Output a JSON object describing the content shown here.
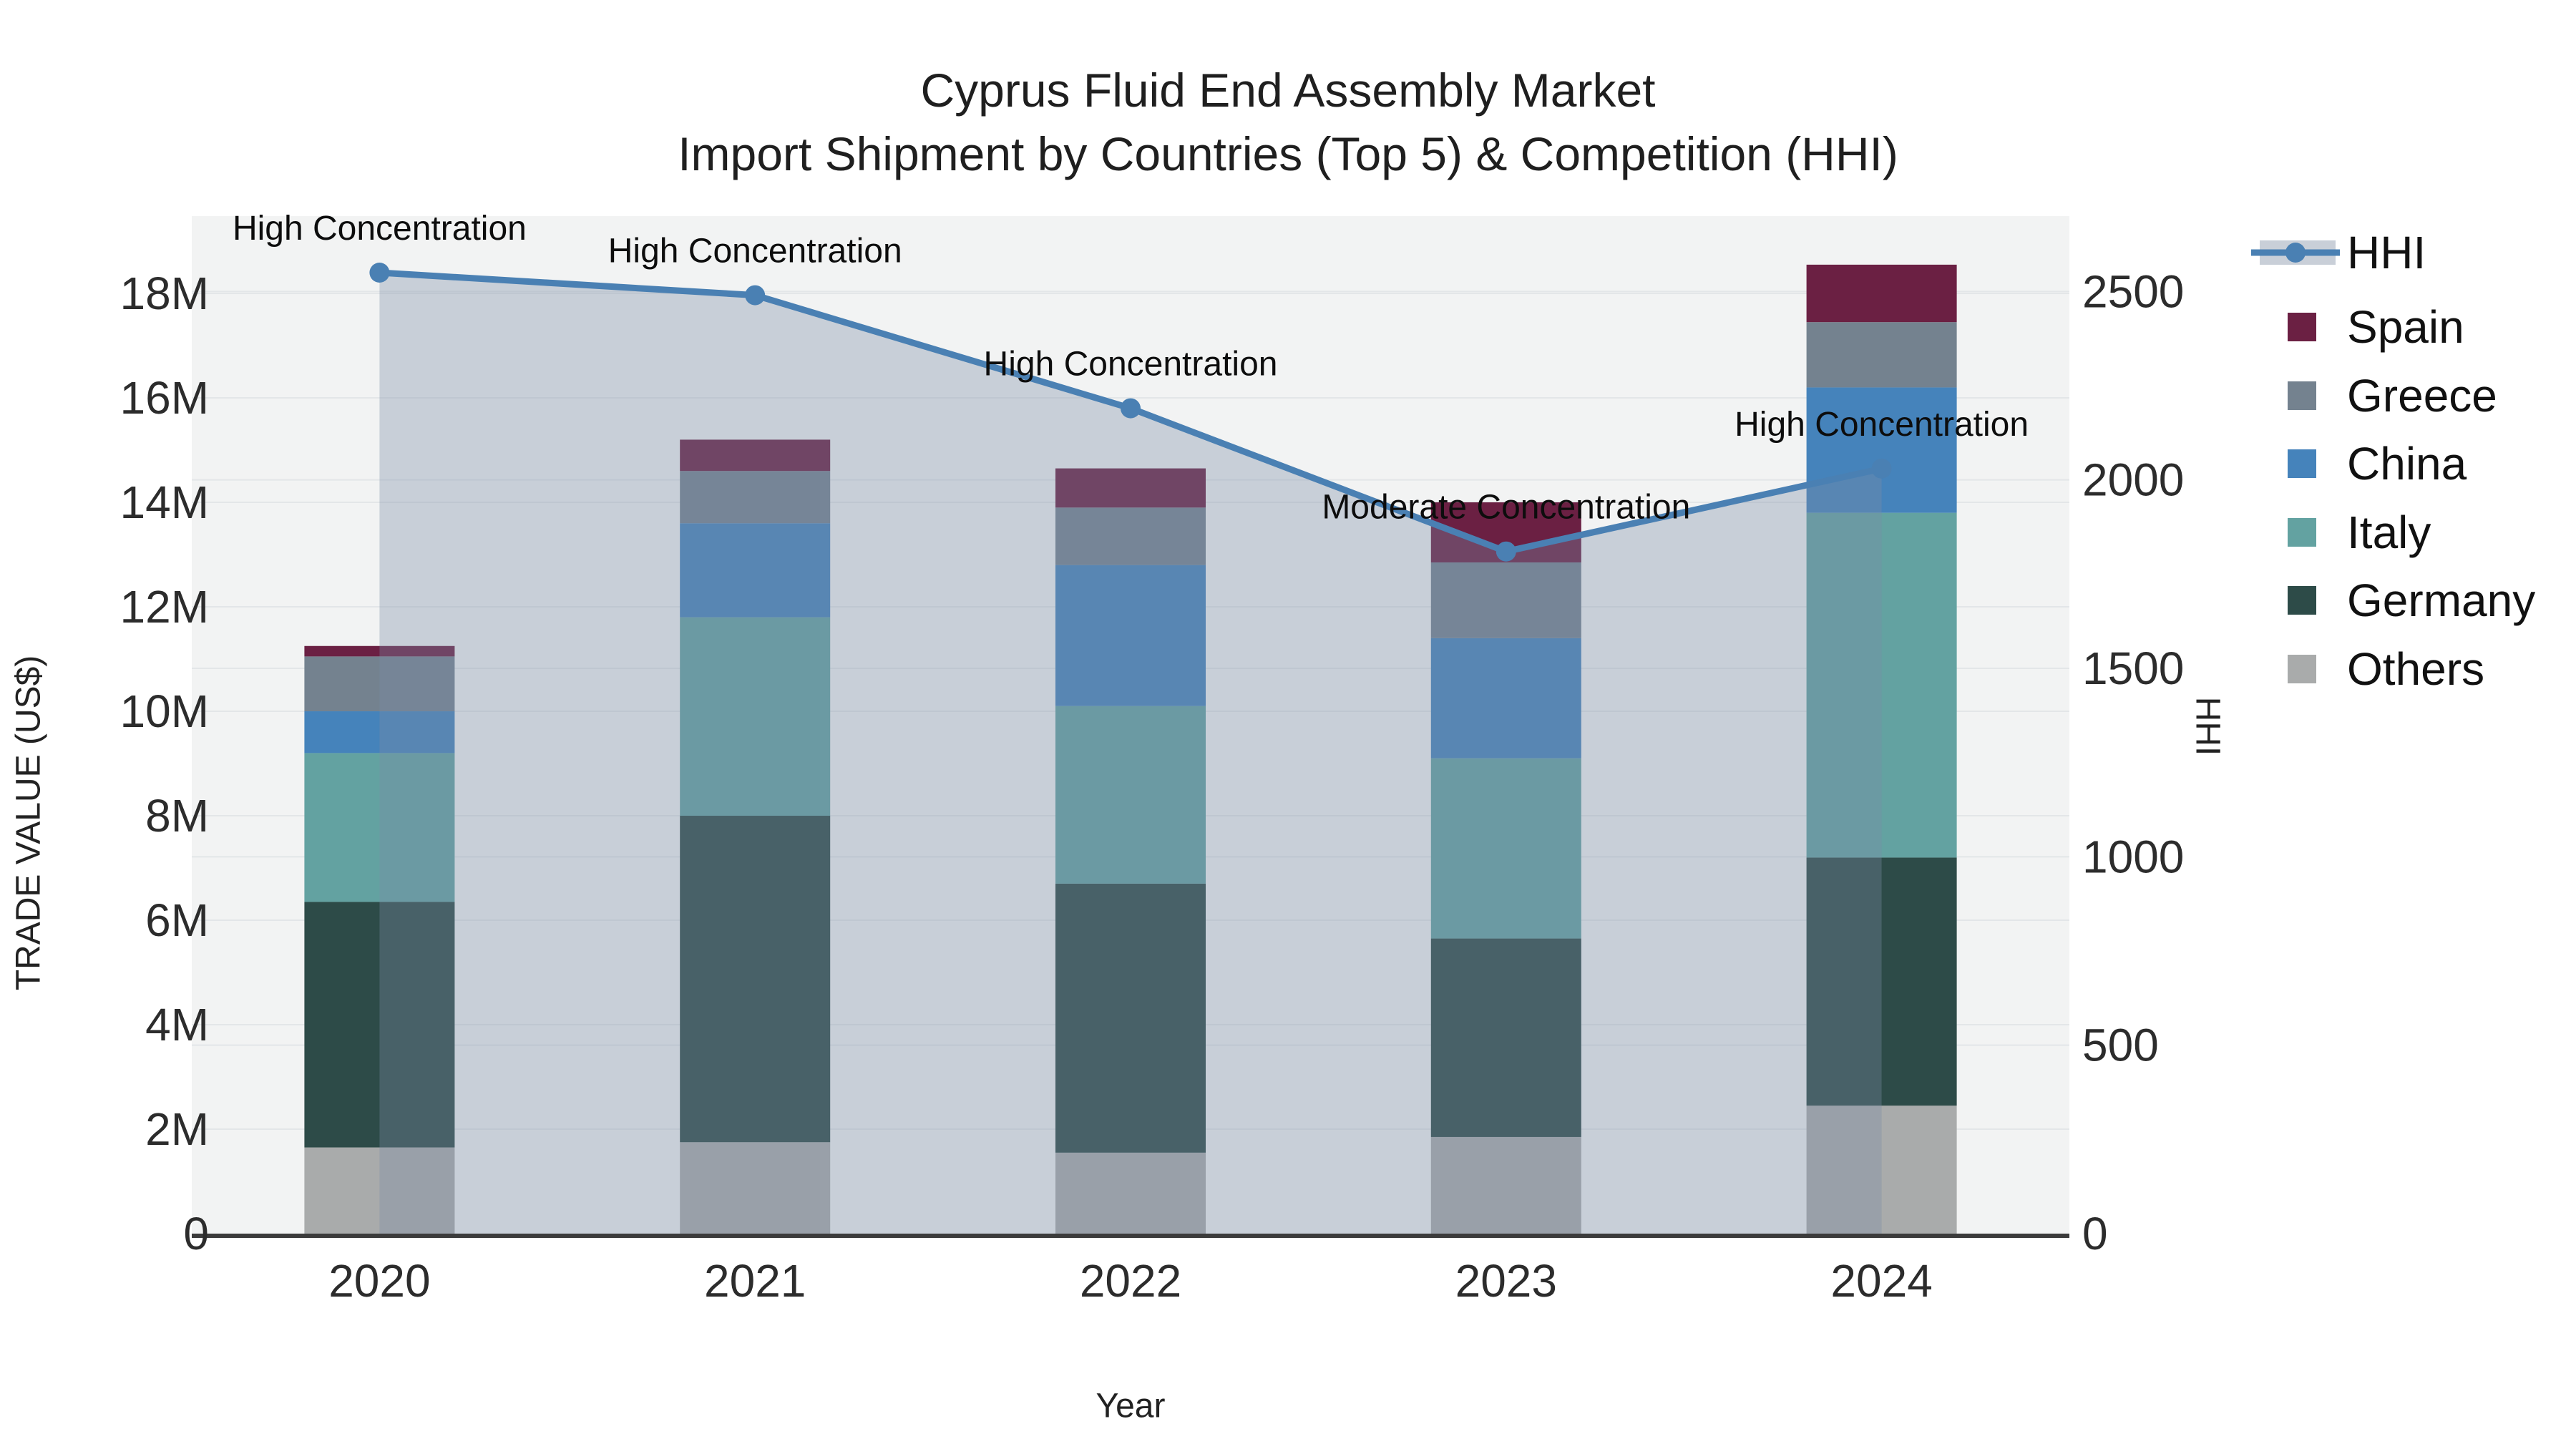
{
  "chart_data": {
    "type": "bar",
    "subtype": "stacked-bar-with-line",
    "title": "Cyprus Fluid End Assembly Market",
    "subtitle": "Import Shipment by Countries (Top 5) & Competition (HHI)",
    "xlabel": "Year",
    "ylabel": "TRADE VALUE (US$)",
    "y2label": "HHI",
    "categories": [
      "2020",
      "2021",
      "2022",
      "2023",
      "2024"
    ],
    "ylim": [
      0,
      19480000
    ],
    "y2lim": [
      0,
      2700
    ],
    "grid": true,
    "legend_position": "right",
    "yticks": {
      "values": [
        0,
        2000000,
        4000000,
        6000000,
        8000000,
        10000000,
        12000000,
        14000000,
        16000000,
        18000000
      ],
      "labels": [
        "0",
        "2M",
        "4M",
        "6M",
        "8M",
        "10M",
        "12M",
        "14M",
        "16M",
        "18M"
      ]
    },
    "y2ticks": {
      "values": [
        0,
        500,
        1000,
        1500,
        2000,
        2500
      ],
      "labels": [
        "0",
        "500",
        "1000",
        "1500",
        "2000",
        "2500"
      ]
    },
    "series": [
      {
        "name": "Others",
        "color": "#a9abab",
        "values": [
          1650000,
          1750000,
          1550000,
          1850000,
          2450000
        ]
      },
      {
        "name": "Germany",
        "color": "#2d4b48",
        "values": [
          4700000,
          6250000,
          5150000,
          3800000,
          4750000
        ]
      },
      {
        "name": "Italy",
        "color": "#63a2a1",
        "values": [
          2850000,
          3800000,
          3400000,
          3450000,
          6600000
        ]
      },
      {
        "name": "China",
        "color": "#4583bb",
        "values": [
          800000,
          1800000,
          2700000,
          2300000,
          2400000
        ]
      },
      {
        "name": "Greece",
        "color": "#74828f",
        "values": [
          1050000,
          1000000,
          1100000,
          1450000,
          1250000
        ]
      },
      {
        "name": "Spain",
        "color": "#6b2043",
        "values": [
          200000,
          600000,
          750000,
          1150000,
          1100000
        ]
      }
    ],
    "line": {
      "name": "HHI",
      "color": "#4a80b3",
      "area_fill": "rgba(124,139,167,0.35)",
      "values": [
        2550,
        2490,
        2190,
        1810,
        2030
      ]
    },
    "annotations": [
      {
        "category": "2020",
        "text": "High Concentration"
      },
      {
        "category": "2021",
        "text": "High Concentration"
      },
      {
        "category": "2022",
        "text": "High Concentration"
      },
      {
        "category": "2023",
        "text": "Moderate Concentration"
      },
      {
        "category": "2024",
        "text": "High Concentration"
      }
    ],
    "legend_order": [
      "HHI",
      "Spain",
      "Greece",
      "China",
      "Italy",
      "Germany",
      "Others"
    ]
  }
}
